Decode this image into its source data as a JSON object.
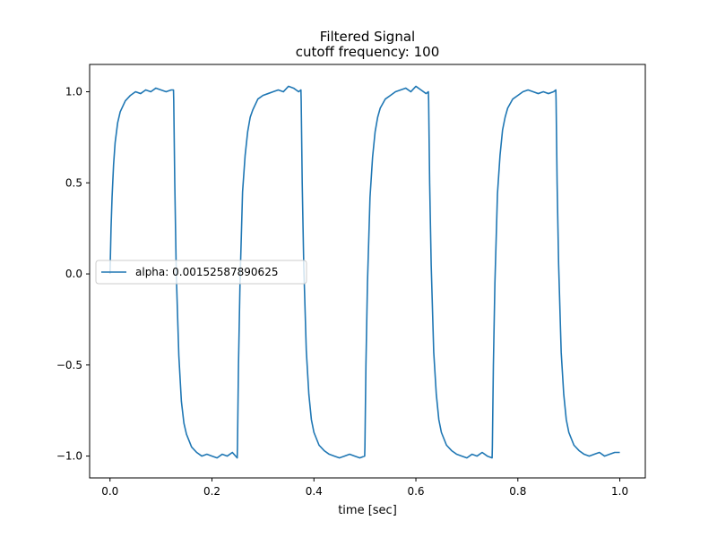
{
  "chart_data": {
    "type": "line",
    "title": "Filtered Signal",
    "subtitle": "cutoff frequency: 100",
    "xlabel": "time [sec]",
    "ylabel": "",
    "xlim": [
      -0.04,
      1.05
    ],
    "ylim": [
      -1.12,
      1.15
    ],
    "grid": false,
    "legend_placement": "center-left",
    "x_ticks": [
      {
        "value": 0.0,
        "label": "0.0"
      },
      {
        "value": 0.2,
        "label": "0.2"
      },
      {
        "value": 0.4,
        "label": "0.4"
      },
      {
        "value": 0.6,
        "label": "0.6"
      },
      {
        "value": 0.8,
        "label": "0.8"
      },
      {
        "value": 1.0,
        "label": "1.0"
      }
    ],
    "y_ticks": [
      {
        "value": 1.0,
        "label": "1.0"
      },
      {
        "value": 0.5,
        "label": "0.5"
      },
      {
        "value": 0.0,
        "label": "0.0"
      },
      {
        "value": -0.5,
        "label": "−0.5"
      },
      {
        "value": -1.0,
        "label": "−1.0"
      }
    ],
    "series": [
      {
        "name": "alpha: 0.00152587890625",
        "color": "#1f77b4",
        "x": [
          0.0,
          0.002,
          0.004,
          0.007,
          0.01,
          0.015,
          0.02,
          0.03,
          0.04,
          0.05,
          0.06,
          0.07,
          0.08,
          0.09,
          0.1,
          0.11,
          0.12,
          0.1245,
          0.125,
          0.127,
          0.13,
          0.135,
          0.14,
          0.145,
          0.15,
          0.16,
          0.17,
          0.18,
          0.19,
          0.2,
          0.21,
          0.22,
          0.23,
          0.24,
          0.2495,
          0.25,
          0.252,
          0.255,
          0.26,
          0.265,
          0.27,
          0.275,
          0.28,
          0.29,
          0.3,
          0.31,
          0.32,
          0.33,
          0.34,
          0.35,
          0.36,
          0.37,
          0.3745,
          0.375,
          0.377,
          0.38,
          0.385,
          0.39,
          0.395,
          0.4,
          0.41,
          0.42,
          0.43,
          0.44,
          0.45,
          0.46,
          0.47,
          0.48,
          0.49,
          0.4995,
          0.5,
          0.502,
          0.505,
          0.51,
          0.515,
          0.52,
          0.525,
          0.53,
          0.54,
          0.55,
          0.56,
          0.57,
          0.58,
          0.59,
          0.6,
          0.61,
          0.62,
          0.6245,
          0.625,
          0.627,
          0.63,
          0.635,
          0.64,
          0.645,
          0.65,
          0.66,
          0.67,
          0.68,
          0.69,
          0.7,
          0.71,
          0.72,
          0.73,
          0.74,
          0.7495,
          0.75,
          0.752,
          0.755,
          0.76,
          0.765,
          0.77,
          0.775,
          0.78,
          0.79,
          0.8,
          0.81,
          0.82,
          0.83,
          0.84,
          0.85,
          0.86,
          0.87,
          0.8745,
          0.875,
          0.877,
          0.88,
          0.885,
          0.89,
          0.895,
          0.9,
          0.91,
          0.92,
          0.93,
          0.94,
          0.95,
          0.96,
          0.97,
          0.98,
          0.99,
          1.0
        ],
        "y": [
          0.0,
          0.25,
          0.42,
          0.6,
          0.72,
          0.83,
          0.89,
          0.95,
          0.98,
          1.0,
          0.99,
          1.01,
          1.0,
          1.02,
          1.01,
          1.0,
          1.01,
          1.01,
          0.95,
          0.5,
          0.0,
          -0.45,
          -0.7,
          -0.82,
          -0.88,
          -0.95,
          -0.98,
          -1.0,
          -0.99,
          -1.0,
          -1.01,
          -0.99,
          -1.0,
          -0.98,
          -1.01,
          -0.95,
          -0.5,
          -0.05,
          0.45,
          0.65,
          0.78,
          0.86,
          0.9,
          0.96,
          0.98,
          0.99,
          1.0,
          1.01,
          1.0,
          1.03,
          1.02,
          1.0,
          1.01,
          0.95,
          0.5,
          0.05,
          -0.42,
          -0.66,
          -0.8,
          -0.87,
          -0.94,
          -0.97,
          -0.99,
          -1.0,
          -1.01,
          -1.0,
          -0.99,
          -1.0,
          -1.01,
          -1.0,
          -0.95,
          -0.5,
          -0.05,
          0.42,
          0.64,
          0.78,
          0.86,
          0.91,
          0.96,
          0.98,
          1.0,
          1.01,
          1.02,
          1.0,
          1.03,
          1.01,
          0.99,
          1.0,
          0.95,
          0.5,
          0.05,
          -0.43,
          -0.66,
          -0.8,
          -0.87,
          -0.94,
          -0.97,
          -0.99,
          -1.0,
          -1.01,
          -0.99,
          -1.0,
          -0.98,
          -1.0,
          -1.01,
          -0.95,
          -0.5,
          -0.05,
          0.44,
          0.65,
          0.79,
          0.86,
          0.91,
          0.96,
          0.98,
          1.0,
          1.01,
          1.0,
          0.99,
          1.0,
          0.99,
          1.0,
          1.01,
          0.95,
          0.5,
          0.05,
          -0.43,
          -0.66,
          -0.8,
          -0.87,
          -0.94,
          -0.97,
          -0.99,
          -1.0,
          -0.99,
          -0.98,
          -1.0,
          -0.99,
          -0.98,
          -0.98
        ]
      }
    ]
  }
}
